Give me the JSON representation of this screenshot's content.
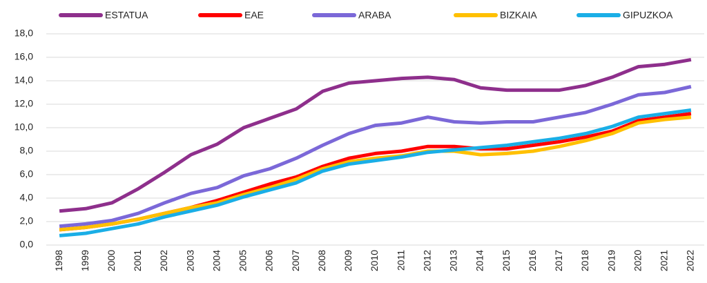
{
  "chart_data": {
    "type": "line",
    "categories": [
      "1998",
      "1999",
      "2000",
      "2001",
      "2002",
      "2003",
      "2004",
      "2005",
      "2006",
      "2007",
      "2008",
      "2009",
      "2010",
      "2011",
      "2012",
      "2013",
      "2014",
      "2015",
      "2016",
      "2017",
      "2018",
      "2019",
      "2020",
      "2021",
      "2022"
    ],
    "series": [
      {
        "name": "ESTATUA",
        "color": "#8e2f8c",
        "values": [
          2.9,
          3.1,
          3.6,
          4.8,
          6.2,
          7.7,
          8.6,
          10.0,
          10.8,
          11.6,
          13.1,
          13.8,
          14.0,
          14.2,
          14.3,
          14.1,
          13.4,
          13.2,
          13.2,
          13.2,
          13.6,
          14.3,
          15.2,
          15.4,
          15.8
        ]
      },
      {
        "name": "EAE",
        "color": "#ff0000",
        "values": [
          1.3,
          1.5,
          1.8,
          2.2,
          2.7,
          3.2,
          3.8,
          4.5,
          5.2,
          5.8,
          6.7,
          7.4,
          7.8,
          8.0,
          8.4,
          8.4,
          8.2,
          8.2,
          8.5,
          8.8,
          9.2,
          9.7,
          10.6,
          10.9,
          11.2
        ]
      },
      {
        "name": "ARABA",
        "color": "#7b68d8",
        "values": [
          1.6,
          1.8,
          2.1,
          2.7,
          3.6,
          4.4,
          4.9,
          5.9,
          6.5,
          7.4,
          8.5,
          9.5,
          10.2,
          10.4,
          10.9,
          10.5,
          10.4,
          10.5,
          10.5,
          10.9,
          11.3,
          12.0,
          12.8,
          13.0,
          13.5
        ]
      },
      {
        "name": "BIZKAIA",
        "color": "#ffc000",
        "values": [
          1.3,
          1.5,
          1.8,
          2.2,
          2.7,
          3.2,
          3.6,
          4.3,
          4.9,
          5.6,
          6.5,
          7.1,
          7.4,
          7.6,
          8.0,
          8.0,
          7.7,
          7.8,
          8.0,
          8.4,
          8.9,
          9.5,
          10.4,
          10.7,
          10.9
        ]
      },
      {
        "name": "GIPUZKOA",
        "color": "#1aaee6",
        "values": [
          0.8,
          1.0,
          1.4,
          1.8,
          2.4,
          2.9,
          3.4,
          4.1,
          4.7,
          5.3,
          6.3,
          6.9,
          7.2,
          7.5,
          7.9,
          8.1,
          8.3,
          8.5,
          8.8,
          9.1,
          9.5,
          10.1,
          10.9,
          11.2,
          11.5
        ]
      }
    ],
    "ylim": [
      0,
      18
    ],
    "yticks": [
      {
        "value": 0,
        "label": "0,0"
      },
      {
        "value": 2,
        "label": "2,0"
      },
      {
        "value": 4,
        "label": "4,0"
      },
      {
        "value": 6,
        "label": "6,0"
      },
      {
        "value": 8,
        "label": "8,0"
      },
      {
        "value": 10,
        "label": "10,0"
      },
      {
        "value": 12,
        "label": "12,0"
      },
      {
        "value": 14,
        "label": "14,0"
      },
      {
        "value": 16,
        "label": "16,0"
      },
      {
        "value": 18,
        "label": "18,0"
      }
    ],
    "grid": true,
    "legend": "top"
  }
}
